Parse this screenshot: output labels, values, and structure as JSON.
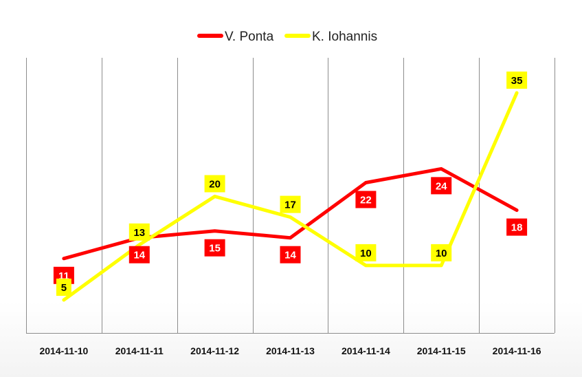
{
  "chart_data": {
    "type": "line",
    "title": "",
    "xlabel": "",
    "ylabel": "",
    "categories": [
      "2014-11-10",
      "2014-11-11",
      "2014-11-12",
      "2014-11-13",
      "2014-11-14",
      "2014-11-15",
      "2014-11-16"
    ],
    "ylim": [
      0,
      40
    ],
    "grid": "vertical",
    "legend_position": "top-center",
    "series": [
      {
        "name": "V. Ponta",
        "color": "#ff0000",
        "label_bg": "#ff0000",
        "label_color": "#ffffff",
        "label_position": "below",
        "values": [
          11,
          14,
          15,
          14,
          22,
          24,
          18
        ]
      },
      {
        "name": "K. Iohannis",
        "color": "#ffff00",
        "label_bg": "#ffff00",
        "label_color": "#000000",
        "label_position": "above",
        "values": [
          5,
          13,
          20,
          17,
          10,
          10,
          35
        ]
      }
    ]
  }
}
